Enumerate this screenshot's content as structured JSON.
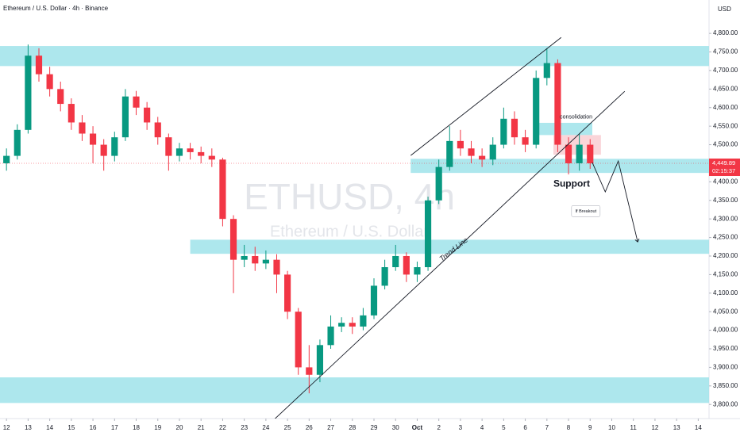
{
  "chart_data": {
    "type": "candlestick",
    "title": "Ethereum / U.S. Dollar · 4h · Binance",
    "watermark": "ETHUSD, 4h",
    "watermark_subtitle": "Ethereum / U.S. Dollar",
    "currency": "USD",
    "up_color": "#089981",
    "down_color": "#f23645",
    "zone_color": "#9fe3ea",
    "xlim": [
      -0.3,
      32.5
    ],
    "ylim": [
      3762,
      4890
    ],
    "xticks": [
      {
        "value": 0,
        "label": "12"
      },
      {
        "value": 1,
        "label": "13"
      },
      {
        "value": 2,
        "label": "14"
      },
      {
        "value": 3,
        "label": "15"
      },
      {
        "value": 4,
        "label": "16"
      },
      {
        "value": 5,
        "label": "17"
      },
      {
        "value": 6,
        "label": "18"
      },
      {
        "value": 7,
        "label": "19"
      },
      {
        "value": 8,
        "label": "20"
      },
      {
        "value": 9,
        "label": "21"
      },
      {
        "value": 10,
        "label": "22"
      },
      {
        "value": 11,
        "label": "23"
      },
      {
        "value": 12,
        "label": "24"
      },
      {
        "value": 13,
        "label": "25"
      },
      {
        "value": 14,
        "label": "26"
      },
      {
        "value": 15,
        "label": "27"
      },
      {
        "value": 16,
        "label": "28"
      },
      {
        "value": 17,
        "label": "29"
      },
      {
        "value": 18,
        "label": "30"
      },
      {
        "value": 19,
        "label": "Oct"
      },
      {
        "value": 20,
        "label": "2"
      },
      {
        "value": 21,
        "label": "3"
      },
      {
        "value": 22,
        "label": "4"
      },
      {
        "value": 23,
        "label": "5"
      },
      {
        "value": 24,
        "label": "6"
      },
      {
        "value": 25,
        "label": "7"
      },
      {
        "value": 26,
        "label": "8"
      },
      {
        "value": 27,
        "label": "9"
      },
      {
        "value": 28,
        "label": "10"
      },
      {
        "value": 29,
        "label": "11"
      },
      {
        "value": 30,
        "label": "12"
      },
      {
        "value": 31,
        "label": "13"
      },
      {
        "value": 32,
        "label": "14"
      }
    ],
    "yticks": [
      {
        "value": 3800,
        "label": "3,800.00"
      },
      {
        "value": 3850,
        "label": "3,850.00"
      },
      {
        "value": 3900,
        "label": "3,900.00"
      },
      {
        "value": 3950,
        "label": "3,950.00"
      },
      {
        "value": 4000,
        "label": "4,000.00"
      },
      {
        "value": 4050,
        "label": "4,050.00"
      },
      {
        "value": 4100,
        "label": "4,100.00"
      },
      {
        "value": 4150,
        "label": "4,150.00"
      },
      {
        "value": 4200,
        "label": "4,200.00"
      },
      {
        "value": 4250,
        "label": "4,250.00"
      },
      {
        "value": 4300,
        "label": "4,300.00"
      },
      {
        "value": 4350,
        "label": "4,350.00"
      },
      {
        "value": 4400,
        "label": "4,400.00"
      },
      {
        "value": 4450,
        "label": "4,450.00"
      },
      {
        "value": 4500,
        "label": "4,500.00"
      },
      {
        "value": 4550,
        "label": "4,550.00"
      },
      {
        "value": 4600,
        "label": "4,600.00"
      },
      {
        "value": 4650,
        "label": "4,650.00"
      },
      {
        "value": 4700,
        "label": "4,700.00"
      },
      {
        "value": 4750,
        "label": "4,750.00"
      },
      {
        "value": 4800,
        "label": "4,800.00"
      }
    ],
    "x": [
      0,
      0.5,
      1,
      1.5,
      2,
      2.5,
      3,
      3.5,
      4,
      4.5,
      5,
      5.5,
      6,
      6.5,
      7,
      7.5,
      8,
      8.5,
      9,
      9.5,
      10,
      10.5,
      11,
      11.5,
      12,
      12.5,
      13,
      13.5,
      14,
      14.5,
      15,
      15.5,
      16,
      16.5,
      17,
      17.5,
      18,
      18.5,
      19,
      19.5,
      20,
      20.5,
      21,
      21.5,
      22,
      22.5,
      23,
      23.5,
      24,
      24.5,
      25,
      25.5,
      26,
      26.5,
      27
    ],
    "open": [
      4450,
      4470,
      4540,
      4740,
      4690,
      4650,
      4610,
      4560,
      4530,
      4500,
      4470,
      4520,
      4630,
      4600,
      4560,
      4520,
      4470,
      4490,
      4480,
      4470,
      4460,
      4300,
      4190,
      4200,
      4180,
      4190,
      4150,
      4050,
      3900,
      3880,
      3960,
      4010,
      4020,
      4010,
      4040,
      4120,
      4170,
      4200,
      4150,
      4170,
      4350,
      4440,
      4510,
      4490,
      4470,
      4460,
      4500,
      4570,
      4520,
      4500,
      4680,
      4720,
      4500,
      4450,
      4500
    ],
    "high": [
      4490,
      4555,
      4770,
      4760,
      4710,
      4670,
      4625,
      4580,
      4550,
      4515,
      4535,
      4650,
      4645,
      4615,
      4575,
      4530,
      4505,
      4505,
      4495,
      4490,
      4465,
      4310,
      4230,
      4225,
      4215,
      4205,
      4160,
      4060,
      3960,
      3975,
      4040,
      4035,
      4035,
      4060,
      4140,
      4190,
      4230,
      4210,
      4185,
      4360,
      4460,
      4550,
      4540,
      4510,
      4490,
      4520,
      4600,
      4590,
      4540,
      4700,
      4760,
      4730,
      4520,
      4530,
      4515
    ],
    "low": [
      4430,
      4460,
      4530,
      4670,
      4630,
      4590,
      4540,
      4510,
      4450,
      4430,
      4455,
      4510,
      4580,
      4540,
      4500,
      4430,
      4455,
      4460,
      4450,
      4440,
      4280,
      4100,
      4170,
      4160,
      4165,
      4100,
      4030,
      3880,
      3830,
      3860,
      3950,
      3995,
      3990,
      4000,
      4030,
      4110,
      4160,
      4130,
      4130,
      4160,
      4340,
      4430,
      4470,
      4450,
      4440,
      4445,
      4490,
      4500,
      4480,
      4490,
      4660,
      4480,
      4420,
      4430,
      4435
    ],
    "close": [
      4470,
      4540,
      4740,
      4690,
      4650,
      4610,
      4560,
      4530,
      4500,
      4470,
      4520,
      4630,
      4600,
      4560,
      4520,
      4470,
      4490,
      4480,
      4470,
      4460,
      4300,
      4190,
      4200,
      4180,
      4190,
      4150,
      4050,
      3900,
      3880,
      3960,
      4010,
      4020,
      4010,
      4040,
      4120,
      4170,
      4200,
      4150,
      4170,
      4350,
      4440,
      4510,
      4490,
      4470,
      4460,
      4500,
      4570,
      4520,
      4500,
      4680,
      4720,
      4500,
      4450,
      4500,
      4450
    ],
    "last_price": {
      "value": 4449.89,
      "label": "4,449.89"
    },
    "countdown": "02:15:37",
    "zones": [
      {
        "x": [
          -0.3,
          32.5
        ],
        "y": [
          4712,
          4766
        ]
      },
      {
        "x": [
          18.7,
          32.5
        ],
        "y": [
          4424,
          4462
        ]
      },
      {
        "x": [
          8.5,
          32.5
        ],
        "y": [
          4206,
          4244
        ]
      },
      {
        "x": [
          -0.3,
          32.5
        ],
        "y": [
          3804,
          3873
        ]
      },
      {
        "x": [
          24.6,
          27.1
        ],
        "y": [
          4526,
          4559
        ]
      }
    ],
    "highlight": {
      "x": [
        25.3,
        27.5
      ],
      "y": [
        4473,
        4526
      ]
    },
    "lines": [
      {
        "x": [
          18.7,
          25.66
        ],
        "y": [
          4471,
          4789
        ]
      },
      {
        "x": [
          12.3,
          28.6
        ],
        "y": [
          3755,
          4644
        ]
      }
    ],
    "projection": {
      "x": [
        27.1,
        27.7,
        28.3,
        29.2
      ],
      "y": [
        4452,
        4373,
        4456,
        4238
      ]
    },
    "annotations": [
      {
        "text": "consolidation",
        "x": 25.6,
        "y": 4575
      },
      {
        "text": "Support",
        "x": 25.3,
        "y": 4394
      },
      {
        "text": "Trend Line",
        "x": 20.7,
        "y": 4217
      },
      {
        "text": "If Breakout",
        "x": 26.8,
        "y": 4321
      }
    ]
  }
}
